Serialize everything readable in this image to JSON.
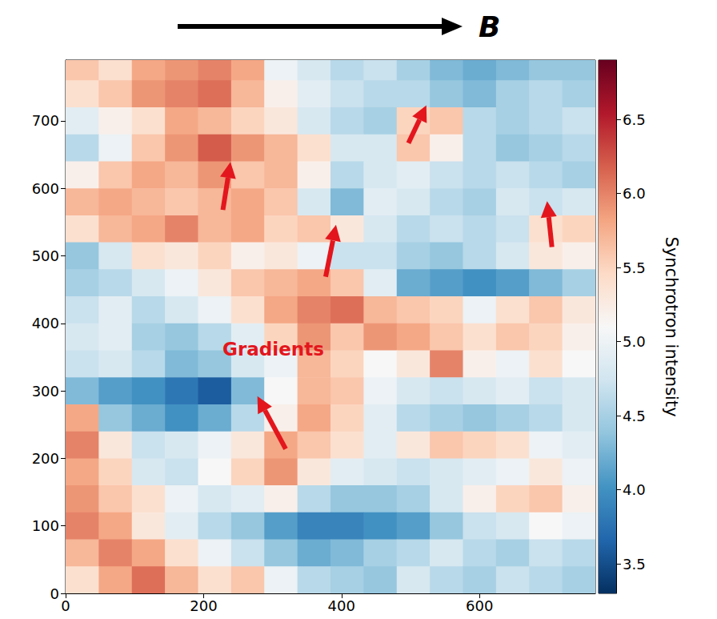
{
  "chart_data": {
    "type": "heatmap",
    "title": "B",
    "x": [
      24,
      72,
      120,
      168,
      216,
      264,
      312,
      360,
      408,
      456,
      504,
      552,
      600,
      648,
      696,
      744
    ],
    "y": [
      780,
      740,
      700,
      660,
      620,
      580,
      540,
      500,
      460,
      420,
      380,
      340,
      300,
      260,
      220,
      180,
      140,
      100,
      60,
      20
    ],
    "values": [
      [
        5.6,
        5.4,
        5.8,
        5.9,
        6.0,
        5.8,
        5.0,
        4.8,
        4.6,
        4.7,
        4.5,
        4.3,
        4.2,
        4.3,
        4.4,
        4.4
      ],
      [
        5.4,
        5.6,
        5.9,
        6.0,
        6.1,
        5.7,
        5.2,
        4.9,
        4.7,
        4.6,
        4.6,
        4.4,
        4.3,
        4.5,
        4.6,
        4.5
      ],
      [
        4.9,
        5.2,
        5.4,
        5.8,
        5.7,
        5.5,
        5.3,
        4.8,
        4.6,
        4.5,
        5.5,
        5.6,
        4.6,
        4.5,
        4.6,
        4.7
      ],
      [
        4.6,
        5.0,
        5.6,
        5.9,
        6.2,
        5.9,
        5.7,
        5.4,
        4.8,
        4.8,
        5.6,
        5.2,
        4.6,
        4.4,
        4.5,
        4.6
      ],
      [
        5.2,
        5.6,
        5.8,
        5.7,
        5.9,
        5.6,
        5.7,
        5.2,
        4.6,
        4.8,
        4.9,
        4.7,
        4.6,
        4.7,
        4.6,
        4.5
      ],
      [
        5.7,
        5.8,
        5.7,
        5.6,
        5.7,
        5.8,
        5.6,
        4.8,
        4.3,
        4.9,
        4.8,
        4.6,
        4.5,
        4.8,
        4.7,
        4.8
      ],
      [
        5.4,
        5.7,
        5.8,
        6.0,
        5.7,
        5.8,
        5.5,
        5.6,
        5.3,
        4.8,
        4.6,
        4.7,
        4.6,
        4.7,
        5.4,
        5.5
      ],
      [
        4.4,
        4.8,
        5.4,
        5.3,
        5.5,
        5.2,
        5.3,
        5.0,
        4.7,
        4.7,
        4.5,
        4.4,
        4.6,
        4.8,
        5.3,
        5.2
      ],
      [
        4.5,
        4.6,
        4.8,
        5.0,
        5.3,
        5.6,
        5.7,
        5.8,
        5.6,
        4.9,
        4.2,
        4.1,
        4.0,
        4.1,
        4.3,
        4.5
      ],
      [
        4.7,
        4.9,
        4.6,
        4.8,
        5.0,
        5.4,
        5.8,
        6.0,
        6.1,
        5.7,
        5.6,
        5.5,
        5.0,
        5.4,
        5.6,
        5.3
      ],
      [
        4.8,
        4.9,
        4.5,
        4.4,
        4.6,
        4.9,
        5.5,
        5.9,
        5.6,
        5.9,
        5.8,
        5.6,
        5.4,
        5.6,
        5.5,
        5.2
      ],
      [
        4.7,
        4.8,
        4.6,
        4.3,
        4.4,
        4.8,
        5.0,
        5.7,
        5.5,
        5.1,
        5.3,
        6.0,
        5.2,
        5.0,
        5.4,
        5.1
      ],
      [
        4.3,
        4.1,
        4.0,
        3.8,
        3.6,
        4.3,
        5.1,
        5.7,
        5.6,
        5.0,
        4.8,
        4.7,
        4.8,
        4.9,
        4.7,
        4.8
      ],
      [
        5.8,
        4.4,
        4.2,
        4.0,
        4.2,
        4.6,
        5.2,
        5.8,
        5.5,
        4.9,
        4.6,
        4.5,
        4.4,
        4.5,
        4.6,
        4.8
      ],
      [
        6.0,
        5.3,
        4.7,
        4.8,
        5.0,
        5.3,
        5.8,
        5.6,
        5.4,
        4.9,
        5.3,
        5.6,
        5.5,
        5.4,
        5.0,
        4.9
      ],
      [
        5.8,
        5.5,
        4.8,
        4.7,
        5.1,
        5.5,
        5.9,
        5.3,
        4.9,
        4.8,
        4.7,
        4.8,
        4.9,
        5.0,
        5.3,
        5.0
      ],
      [
        5.9,
        5.6,
        5.4,
        5.0,
        4.8,
        4.9,
        5.2,
        4.6,
        4.4,
        4.4,
        4.5,
        4.8,
        5.2,
        5.5,
        5.6,
        5.2
      ],
      [
        6.0,
        5.8,
        5.3,
        4.9,
        4.6,
        4.4,
        4.1,
        3.9,
        3.9,
        4.0,
        4.1,
        4.4,
        4.7,
        4.8,
        5.1,
        5.0
      ],
      [
        5.7,
        6.0,
        5.8,
        5.4,
        5.0,
        4.7,
        4.4,
        4.2,
        4.3,
        4.5,
        4.6,
        4.8,
        4.6,
        4.5,
        4.7,
        4.6
      ],
      [
        5.4,
        5.8,
        6.1,
        5.7,
        5.4,
        5.6,
        5.0,
        4.6,
        4.5,
        4.4,
        4.8,
        4.6,
        4.5,
        4.7,
        4.6,
        4.5
      ]
    ],
    "xlim": [
      0,
      768
    ],
    "xticks": [
      0,
      200,
      400,
      600
    ],
    "ylim": [
      0,
      790
    ],
    "yticks": [
      0,
      100,
      200,
      300,
      400,
      500,
      600,
      700
    ],
    "colorbar": {
      "label": "Synchrotron intensity",
      "range": [
        3.3,
        6.9
      ],
      "ticks": [
        3.5,
        {
          "value": 4,
          "label": "4.0"
        },
        4.5,
        {
          "value": 5,
          "label": "5.0"
        },
        5.5,
        {
          "value": 6,
          "label": "6.0"
        },
        6.5
      ]
    },
    "annotations": [
      {
        "text": "Gradients",
        "x": 301,
        "y": 362
      }
    ],
    "arrows": [
      {
        "x": [
          319,
          278
        ],
        "y": [
          214,
          292
        ]
      },
      {
        "x": [
          377,
          392
        ],
        "y": [
          469,
          546
        ]
      },
      {
        "x": [
          228,
          239
        ],
        "y": [
          568,
          639
        ]
      },
      {
        "x": [
          497,
          523
        ],
        "y": [
          667,
          723
        ]
      },
      {
        "x": [
          705,
          698
        ],
        "y": [
          513,
          581
        ]
      }
    ]
  }
}
